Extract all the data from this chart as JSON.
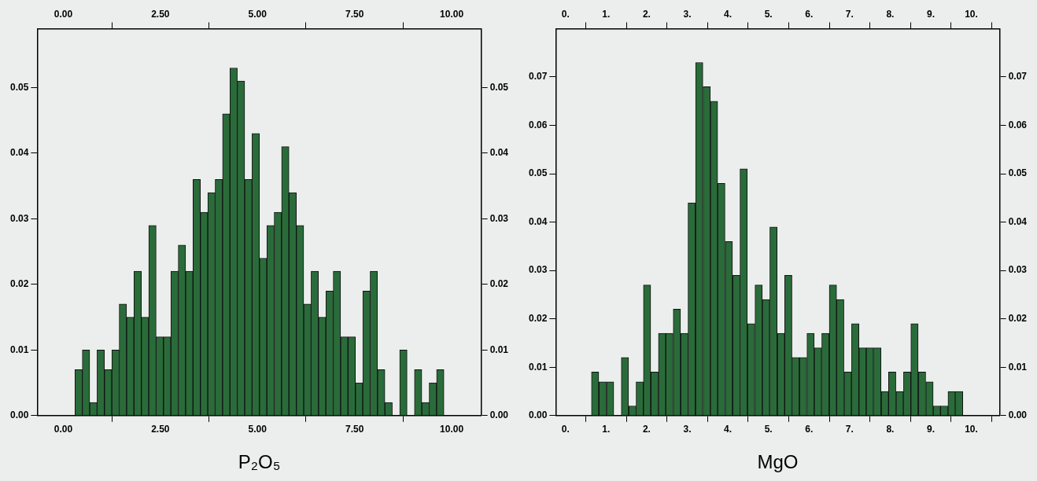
{
  "chart_data": [
    {
      "type": "histogram",
      "xlabel": "P₂O₅",
      "color": "#2a6b3a",
      "bins": [
        0.3,
        0.49,
        0.68,
        0.87,
        1.06,
        1.25,
        1.44,
        1.63,
        1.82,
        2.01,
        2.2,
        2.39,
        2.58,
        2.77,
        2.96,
        3.15,
        3.34,
        3.53,
        3.72,
        3.91,
        4.1,
        4.29,
        4.48,
        4.67,
        4.86,
        5.05,
        5.24,
        5.43,
        5.62,
        5.81,
        6.0,
        6.19,
        6.38,
        6.57,
        6.76,
        6.95,
        7.14,
        7.33,
        7.52,
        7.71,
        7.9,
        8.09,
        8.28,
        8.47,
        8.66,
        8.85,
        9.04,
        9.23,
        9.42,
        9.61,
        9.8
      ],
      "values": [
        0.007,
        0.01,
        0.002,
        0.01,
        0.007,
        0.01,
        0.017,
        0.015,
        0.022,
        0.015,
        0.029,
        0.012,
        0.012,
        0.022,
        0.026,
        0.022,
        0.036,
        0.031,
        0.034,
        0.036,
        0.046,
        0.053,
        0.051,
        0.036,
        0.043,
        0.024,
        0.029,
        0.031,
        0.041,
        0.034,
        0.029,
        0.017,
        0.022,
        0.015,
        0.019,
        0.022,
        0.012,
        0.012,
        0.005,
        0.019,
        0.022,
        0.007,
        0.002,
        0,
        0.01,
        0,
        0.007,
        0.002,
        0.005,
        0.007
      ],
      "xlim": [
        -0.67,
        10.76
      ],
      "xticks": [
        {
          "value": 0,
          "label": "0.00"
        },
        {
          "value": 2.5,
          "label": "2.50"
        },
        {
          "value": 5,
          "label": "5.00"
        },
        {
          "value": 7.5,
          "label": "7.50"
        },
        {
          "value": 10,
          "label": "10.00"
        }
      ],
      "x2lim": [
        -0.67,
        10.76
      ],
      "x2ticks": [
        {
          "value": 0,
          "label": "0.00"
        },
        {
          "value": 2.5,
          "label": "2.50"
        },
        {
          "value": 5,
          "label": "5.00"
        },
        {
          "value": 7.5,
          "label": "7.50"
        },
        {
          "value": 10,
          "label": "10.00"
        }
      ],
      "ylim": [
        0,
        0.059
      ],
      "yticks": [
        {
          "value": 0,
          "label": "0.00"
        },
        0.01,
        0.02,
        0.03,
        0.04,
        0.05
      ],
      "y2lim": [
        0,
        0.059
      ],
      "y2ticks": [
        {
          "value": 0,
          "label": "0.00"
        },
        0.01,
        0.02,
        0.03,
        0.04,
        0.05
      ]
    },
    {
      "type": "histogram",
      "xlabel": "MgO",
      "color": "#2a6b3a",
      "bins": [
        0.64,
        0.82,
        1.01,
        1.19,
        1.37,
        1.56,
        1.74,
        1.92,
        2.1,
        2.29,
        2.47,
        2.65,
        2.84,
        3.02,
        3.2,
        3.39,
        3.57,
        3.75,
        3.93,
        4.12,
        4.3,
        4.48,
        4.67,
        4.85,
        5.03,
        5.22,
        5.4,
        5.58,
        5.76,
        5.95,
        6.13,
        6.31,
        6.5,
        6.68,
        6.86,
        7.05,
        7.23,
        7.41,
        7.59,
        7.78,
        7.96,
        8.14,
        8.33,
        8.51,
        8.69,
        8.88,
        9.06,
        9.24,
        9.42,
        9.61,
        9.79
      ],
      "values": [
        0.009,
        0.007,
        0.007,
        0,
        0.012,
        0.002,
        0.007,
        0.027,
        0.009,
        0.017,
        0.017,
        0.022,
        0.017,
        0.044,
        0.073,
        0.068,
        0.065,
        0.048,
        0.036,
        0.029,
        0.051,
        0.019,
        0.027,
        0.024,
        0.039,
        0.017,
        0.029,
        0.012,
        0.012,
        0.017,
        0.014,
        0.017,
        0.027,
        0.024,
        0.009,
        0.019,
        0.014,
        0.014,
        0.014,
        0.005,
        0.009,
        0.005,
        0.009,
        0.019,
        0.009,
        0.007,
        0.002,
        0.002,
        0.005,
        0.005
      ],
      "xlim": [
        -0.24,
        10.7
      ],
      "xticks": [
        {
          "value": 0,
          "label": "0."
        },
        {
          "value": 1,
          "label": "1."
        },
        {
          "value": 2,
          "label": "2."
        },
        {
          "value": 3,
          "label": "3."
        },
        {
          "value": 4,
          "label": "4."
        },
        {
          "value": 5,
          "label": "5."
        },
        {
          "value": 6,
          "label": "6."
        },
        {
          "value": 7,
          "label": "7."
        },
        {
          "value": 8,
          "label": "8."
        },
        {
          "value": 9,
          "label": "9."
        },
        {
          "value": 10,
          "label": "10."
        }
      ],
      "x2lim": [
        -0.24,
        10.7
      ],
      "x2ticks": [
        {
          "value": 0,
          "label": "0."
        },
        {
          "value": 1,
          "label": "1."
        },
        {
          "value": 2,
          "label": "2."
        },
        {
          "value": 3,
          "label": "3."
        },
        {
          "value": 4,
          "label": "4."
        },
        {
          "value": 5,
          "label": "5."
        },
        {
          "value": 6,
          "label": "6."
        },
        {
          "value": 7,
          "label": "7."
        },
        {
          "value": 8,
          "label": "8."
        },
        {
          "value": 9,
          "label": "9."
        },
        {
          "value": 10,
          "label": "10."
        }
      ],
      "ylim": [
        0,
        0.08
      ],
      "yticks": [
        {
          "value": 0,
          "label": "0.00"
        },
        0.01,
        0.02,
        0.03,
        0.04,
        0.05,
        0.06,
        0.07
      ],
      "y2lim": [
        0,
        0.08
      ],
      "y2ticks": [
        {
          "value": 0,
          "label": "0.00"
        },
        0.01,
        0.02,
        0.03,
        0.04,
        0.05,
        0.06,
        0.07
      ]
    }
  ]
}
